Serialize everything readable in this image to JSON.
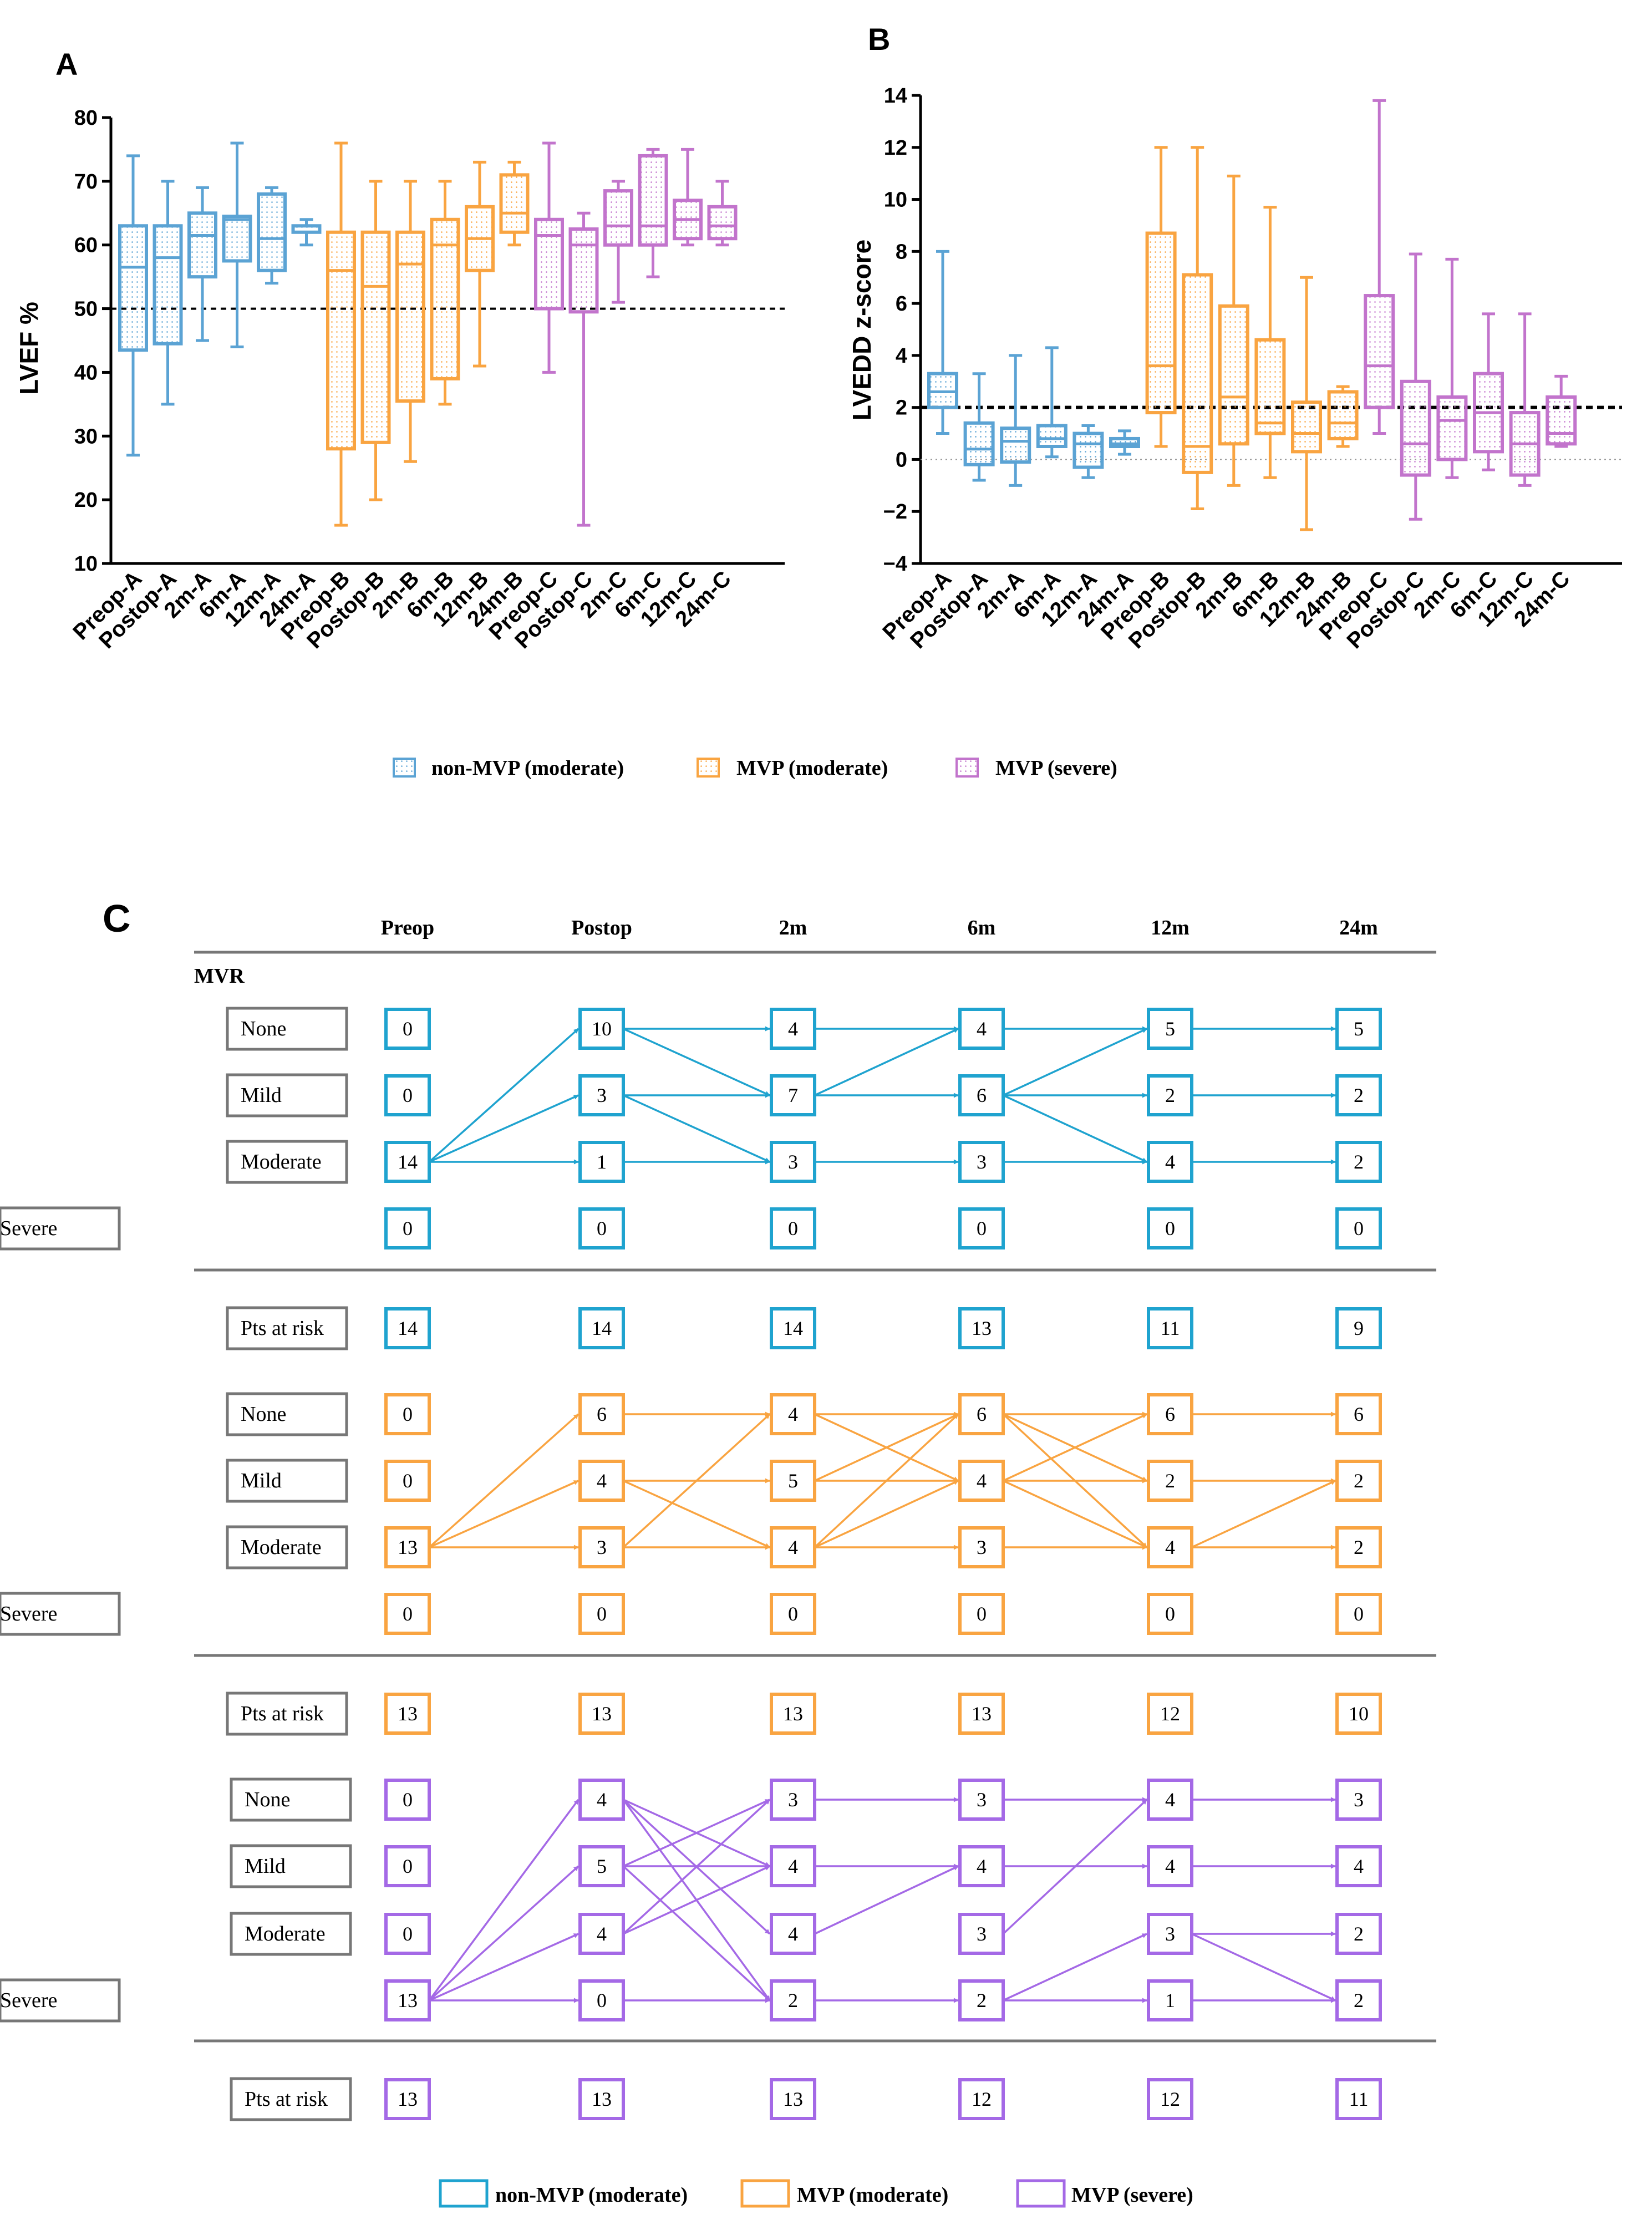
{
  "panels": {
    "a": "A",
    "b": "B",
    "c": "C"
  },
  "colors": {
    "a": "#5ba3d4",
    "b": "#f9a441",
    "c": "#c274cc",
    "cA": "#1fa3cf",
    "cB": "#f9a441",
    "cC": "#a469e6",
    "gray": "#777777"
  },
  "legend": {
    "a": "non-MVP (moderate)",
    "b": "MVP (moderate)",
    "c": "MVP (severe)"
  },
  "chart_data": [
    {
      "type": "box",
      "panel": "A",
      "ylabel": "LVEF %",
      "ylim": [
        10,
        80
      ],
      "yticks": [
        10,
        20,
        30,
        40,
        50,
        60,
        70,
        80
      ],
      "reference_line": 50,
      "categories": [
        "Preop-A",
        "Postop-A",
        "2m-A",
        "6m-A",
        "12m-A",
        "24m-A",
        "Preop-B",
        "Postop-B",
        "2m-B",
        "6m-B",
        "12m-B",
        "24m-B",
        "Preop-C",
        "Postop-C",
        "2m-C",
        "6m-C",
        "12m-C",
        "24m-C"
      ],
      "groups": [
        "a",
        "a",
        "a",
        "a",
        "a",
        "a",
        "b",
        "b",
        "b",
        "b",
        "b",
        "b",
        "c",
        "c",
        "c",
        "c",
        "c",
        "c"
      ],
      "boxes": [
        {
          "min": 27,
          "q1": 43.5,
          "median": 56.5,
          "q3": 63,
          "max": 74
        },
        {
          "min": 35,
          "q1": 44.5,
          "median": 58,
          "q3": 63,
          "max": 70
        },
        {
          "min": 45,
          "q1": 55,
          "median": 61.5,
          "q3": 65,
          "max": 69
        },
        {
          "min": 44,
          "q1": 57.5,
          "median": 64,
          "q3": 64.5,
          "max": 76
        },
        {
          "min": 54,
          "q1": 56,
          "median": 61,
          "q3": 68,
          "max": 69
        },
        {
          "min": 60,
          "q1": 62,
          "median": 63,
          "q3": 63,
          "max": 64
        },
        {
          "min": 16,
          "q1": 28,
          "median": 56,
          "q3": 62,
          "max": 76
        },
        {
          "min": 20,
          "q1": 29,
          "median": 53.5,
          "q3": 62,
          "max": 70
        },
        {
          "min": 26,
          "q1": 35.5,
          "median": 57,
          "q3": 62,
          "max": 70
        },
        {
          "min": 35,
          "q1": 39,
          "median": 60,
          "q3": 64,
          "max": 70
        },
        {
          "min": 41,
          "q1": 56,
          "median": 61,
          "q3": 66,
          "max": 73
        },
        {
          "min": 60,
          "q1": 62,
          "median": 65,
          "q3": 71,
          "max": 73
        },
        {
          "min": 40,
          "q1": 50,
          "median": 61.5,
          "q3": 64,
          "max": 76
        },
        {
          "min": 16,
          "q1": 49.5,
          "median": 60,
          "q3": 62.5,
          "max": 65
        },
        {
          "min": 51,
          "q1": 60,
          "median": 63,
          "q3": 68.5,
          "max": 70
        },
        {
          "min": 55,
          "q1": 60,
          "median": 63,
          "q3": 74,
          "max": 75
        },
        {
          "min": 60,
          "q1": 61,
          "median": 64,
          "q3": 67,
          "max": 75
        },
        {
          "min": 60,
          "q1": 61,
          "median": 63,
          "q3": 66,
          "max": 70
        }
      ]
    },
    {
      "type": "box",
      "panel": "B",
      "ylabel": "LVEDD z-score",
      "ylim": [
        -4,
        14
      ],
      "yticks": [
        -4,
        -2,
        0,
        2,
        4,
        6,
        8,
        10,
        12,
        14
      ],
      "reference_line": 2,
      "zero_line": 0,
      "categories": [
        "Preop-A",
        "Postop-A",
        "2m-A",
        "6m-A",
        "12m-A",
        "24m-A",
        "Preop-B",
        "Postop-B",
        "2m-B",
        "6m-B",
        "12m-B",
        "24m-B",
        "Preop-C",
        "Postop-C",
        "2m-C",
        "6m-C",
        "12m-C",
        "24m-C"
      ],
      "groups": [
        "a",
        "a",
        "a",
        "a",
        "a",
        "a",
        "b",
        "b",
        "b",
        "b",
        "b",
        "b",
        "c",
        "c",
        "c",
        "c",
        "c",
        "c"
      ],
      "boxes": [
        {
          "min": 1,
          "q1": 2,
          "median": 2.6,
          "q3": 3.3,
          "max": 8
        },
        {
          "min": -0.8,
          "q1": -0.2,
          "median": 0.4,
          "q3": 1.4,
          "max": 3.3
        },
        {
          "min": -1,
          "q1": -0.1,
          "median": 0.7,
          "q3": 1.2,
          "max": 4
        },
        {
          "min": 0.1,
          "q1": 0.5,
          "median": 0.8,
          "q3": 1.3,
          "max": 4.3
        },
        {
          "min": -0.7,
          "q1": -0.3,
          "median": 0.6,
          "q3": 1,
          "max": 1.3
        },
        {
          "min": 0.2,
          "q1": 0.5,
          "median": 0.6,
          "q3": 0.8,
          "max": 1.1
        },
        {
          "min": 0.5,
          "q1": 1.8,
          "median": 3.6,
          "q3": 8.7,
          "max": 12
        },
        {
          "min": -1.9,
          "q1": -0.5,
          "median": 0.5,
          "q3": 7.1,
          "max": 12
        },
        {
          "min": -1,
          "q1": 0.6,
          "median": 2.4,
          "q3": 5.9,
          "max": 10.9
        },
        {
          "min": -0.7,
          "q1": 1,
          "median": 1.4,
          "q3": 4.6,
          "max": 9.7
        },
        {
          "min": -2.7,
          "q1": 0.3,
          "median": 1,
          "q3": 2.2,
          "max": 7
        },
        {
          "min": 0.5,
          "q1": 0.8,
          "median": 1.4,
          "q3": 2.6,
          "max": 2.8
        },
        {
          "min": 1,
          "q1": 2,
          "median": 3.6,
          "q3": 6.3,
          "max": 13.8
        },
        {
          "min": -2.3,
          "q1": -0.6,
          "median": 0.6,
          "q3": 3,
          "max": 7.9
        },
        {
          "min": -0.7,
          "q1": 0,
          "median": 1.5,
          "q3": 2.4,
          "max": 7.7
        },
        {
          "min": -0.4,
          "q1": 0.3,
          "median": 1.8,
          "q3": 3.3,
          "max": 5.6
        },
        {
          "min": -1,
          "q1": -0.6,
          "median": 0.6,
          "q3": 1.8,
          "max": 5.6
        },
        {
          "min": 0.5,
          "q1": 0.6,
          "median": 1,
          "q3": 2.4,
          "max": 3.2
        }
      ]
    },
    {
      "type": "flow",
      "panel": "C",
      "title": "MVR",
      "columns": [
        "Preop",
        "Postop",
        "2m",
        "6m",
        "12m",
        "24m"
      ],
      "states": [
        "None",
        "Mild",
        "Moderate",
        "Severe"
      ],
      "risk_label": "Pts at risk",
      "groups": [
        {
          "key": "a",
          "counts": [
            [
              0,
              0,
              14,
              0
            ],
            [
              10,
              3,
              1,
              0
            ],
            [
              4,
              7,
              3,
              0
            ],
            [
              4,
              6,
              3,
              0
            ],
            [
              5,
              2,
              4,
              0
            ],
            [
              5,
              2,
              2,
              0
            ]
          ],
          "at_risk": [
            14,
            14,
            14,
            13,
            11,
            9
          ],
          "transitions": [
            [
              [
                2,
                0
              ],
              [
                2,
                1
              ],
              [
                2,
                2
              ]
            ],
            [
              [
                0,
                0
              ],
              [
                0,
                1
              ],
              [
                1,
                1
              ],
              [
                1,
                2
              ],
              [
                2,
                2
              ]
            ],
            [
              [
                0,
                0
              ],
              [
                1,
                0
              ],
              [
                1,
                1
              ],
              [
                2,
                2
              ]
            ],
            [
              [
                0,
                0
              ],
              [
                1,
                0
              ],
              [
                1,
                1
              ],
              [
                1,
                2
              ],
              [
                2,
                2
              ]
            ],
            [
              [
                0,
                0
              ],
              [
                1,
                1
              ],
              [
                2,
                2
              ]
            ]
          ]
        },
        {
          "key": "b",
          "counts": [
            [
              0,
              0,
              13,
              0
            ],
            [
              6,
              4,
              3,
              0
            ],
            [
              4,
              5,
              4,
              0
            ],
            [
              6,
              4,
              3,
              0
            ],
            [
              6,
              2,
              4,
              0
            ],
            [
              6,
              2,
              2,
              0
            ]
          ],
          "at_risk": [
            13,
            13,
            13,
            13,
            12,
            10
          ],
          "transitions": [
            [
              [
                2,
                0
              ],
              [
                2,
                1
              ],
              [
                2,
                2
              ]
            ],
            [
              [
                0,
                0
              ],
              [
                1,
                1
              ],
              [
                1,
                2
              ],
              [
                2,
                0
              ],
              [
                2,
                2
              ]
            ],
            [
              [
                0,
                0
              ],
              [
                0,
                1
              ],
              [
                1,
                0
              ],
              [
                1,
                1
              ],
              [
                2,
                0
              ],
              [
                2,
                1
              ],
              [
                2,
                2
              ]
            ],
            [
              [
                0,
                0
              ],
              [
                0,
                1
              ],
              [
                0,
                2
              ],
              [
                1,
                0
              ],
              [
                1,
                1
              ],
              [
                1,
                2
              ],
              [
                2,
                2
              ]
            ],
            [
              [
                0,
                0
              ],
              [
                1,
                1
              ],
              [
                2,
                1
              ],
              [
                2,
                2
              ]
            ]
          ]
        },
        {
          "key": "c",
          "counts": [
            [
              0,
              0,
              0,
              13
            ],
            [
              4,
              5,
              4,
              0
            ],
            [
              3,
              4,
              4,
              2
            ],
            [
              3,
              4,
              3,
              2
            ],
            [
              4,
              4,
              3,
              1
            ],
            [
              3,
              4,
              2,
              2
            ]
          ],
          "at_risk": [
            13,
            13,
            13,
            12,
            12,
            11
          ],
          "transitions": [
            [
              [
                3,
                0
              ],
              [
                3,
                1
              ],
              [
                3,
                2
              ],
              [
                3,
                3
              ]
            ],
            [
              [
                0,
                1
              ],
              [
                0,
                2
              ],
              [
                0,
                3
              ],
              [
                1,
                0
              ],
              [
                1,
                1
              ],
              [
                1,
                3
              ],
              [
                2,
                0
              ],
              [
                2,
                1
              ],
              [
                3,
                3
              ]
            ],
            [
              [
                0,
                0
              ],
              [
                1,
                1
              ],
              [
                2,
                1
              ],
              [
                3,
                3
              ]
            ],
            [
              [
                0,
                0
              ],
              [
                1,
                1
              ],
              [
                2,
                0
              ],
              [
                3,
                2
              ],
              [
                3,
                3
              ]
            ],
            [
              [
                0,
                0
              ],
              [
                1,
                1
              ],
              [
                2,
                2
              ],
              [
                2,
                3
              ],
              [
                3,
                3
              ]
            ]
          ]
        }
      ]
    }
  ]
}
